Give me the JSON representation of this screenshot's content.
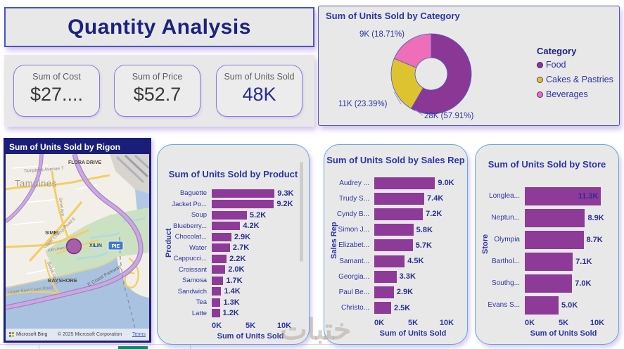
{
  "page_title": "Quantity Analysis",
  "kpi_cards": [
    {
      "label": "Sum of Cost",
      "value": "$27...."
    },
    {
      "label": "Sum of Price",
      "value": "$52.7"
    },
    {
      "label": "Sum of Units Sold",
      "value": "48K"
    }
  ],
  "theme": {
    "bar_color": "#8e3a98",
    "accent_navy": "#2936a5",
    "title_navy": "#1b2380",
    "panel_gray": "#e9e8e8"
  },
  "chart_data": [
    {
      "type": "pie",
      "subtype": "donut",
      "title": "Sum of Units Sold by Category",
      "legend_title": "Category",
      "legend_position": "right",
      "categories": [
        "Food",
        "Cakes & Pastries",
        "Beverages"
      ],
      "values": [
        28000,
        11000,
        9000
      ],
      "percentages": [
        57.91,
        23.39,
        18.71
      ],
      "slice_labels": [
        "28K (57.91%)",
        "11K (23.39%)",
        "9K (18.71%)"
      ],
      "colors": [
        "#8b3796",
        "#dec330",
        "#ee6eb7"
      ]
    },
    {
      "type": "bar",
      "orientation": "horizontal",
      "title": "Sum of Units Sold by Product",
      "xlabel": "Sum of Units Sold",
      "ylabel": "Product",
      "categories": [
        "Baguette",
        "Jacket Po...",
        "Soup",
        "Blueberry...",
        "Chocolat...",
        "Water",
        "Cappucci...",
        "Croissant",
        "Samosa",
        "Sandwich",
        "Tea",
        "Latte"
      ],
      "values": [
        9300,
        9200,
        5200,
        4200,
        2900,
        2700,
        2200,
        2000,
        1700,
        1400,
        1300,
        1200
      ],
      "value_labels": [
        "9.3K",
        "9.2K",
        "5.2K",
        "4.2K",
        "2.9K",
        "2.7K",
        "2.2K",
        "2.0K",
        "1.7K",
        "1.4K",
        "1.3K",
        "1.2K"
      ],
      "x_ticks": [
        "0K",
        "5K",
        "10K"
      ],
      "xlim": [
        0,
        10000
      ]
    },
    {
      "type": "bar",
      "orientation": "horizontal",
      "title": "Sum of Units Sold by Sales Rep",
      "xlabel": "Sum of Units Sold",
      "ylabel": "Sales Rep",
      "categories": [
        "Audrey ...",
        "Trudy S...",
        "Cyndy B...",
        "Simon J...",
        "Elizabet...",
        "Samant...",
        "Georgia...",
        "Paul Be...",
        "Christo..."
      ],
      "values": [
        9000,
        7400,
        7200,
        5800,
        5700,
        4500,
        3300,
        2900,
        2500
      ],
      "value_labels": [
        "9.0K",
        "7.4K",
        "7.2K",
        "5.8K",
        "5.7K",
        "4.5K",
        "3.3K",
        "2.9K",
        "2.5K"
      ],
      "x_ticks": [
        "0K",
        "5K",
        "10K"
      ],
      "xlim": [
        0,
        10000
      ]
    },
    {
      "type": "bar",
      "orientation": "horizontal",
      "title": "Sum of Units Sold by Store",
      "xlabel": "Sum of Units Sold",
      "ylabel": "Store",
      "categories": [
        "Longlea...",
        "Neptun...",
        "Olympia",
        "Barthol...",
        "Southg...",
        "Evans S..."
      ],
      "values": [
        11300,
        8900,
        8700,
        7100,
        7000,
        5000
      ],
      "value_labels": [
        "11.3K",
        "8.9K",
        "8.7K",
        "7.1K",
        "7.0K",
        "5.0K"
      ],
      "x_ticks": [
        "0K",
        "5K",
        "10K"
      ],
      "xlim": [
        0,
        11500
      ]
    }
  ],
  "map": {
    "title": "Sum of Units Sold by Rigon",
    "city": "Tampines",
    "areas": {
      "flora": "FLORA DRIVE",
      "simei": "SIMEI",
      "xilin": "XILIN",
      "bayshore": "BAYSHORE"
    },
    "roads": {
      "pie_badge": "PIE",
      "e_coast": "E Coast Parkway",
      "upper_changi": "Upper Changi Road E",
      "bedok": "Bedok Road",
      "upper_east_coast": "Upper East Coast Road",
      "tampines_ave": "Tampines Avenue 7",
      "simei_ave": "Simei Ave",
      "xilin_ave": "Xilin Avenue"
    },
    "attribution": {
      "provider": "Microsoft Bing",
      "copyright": "© 2025 Microsoft Corporation",
      "terms": "Terms"
    }
  },
  "watermark": {
    "text": "ختبات"
  }
}
